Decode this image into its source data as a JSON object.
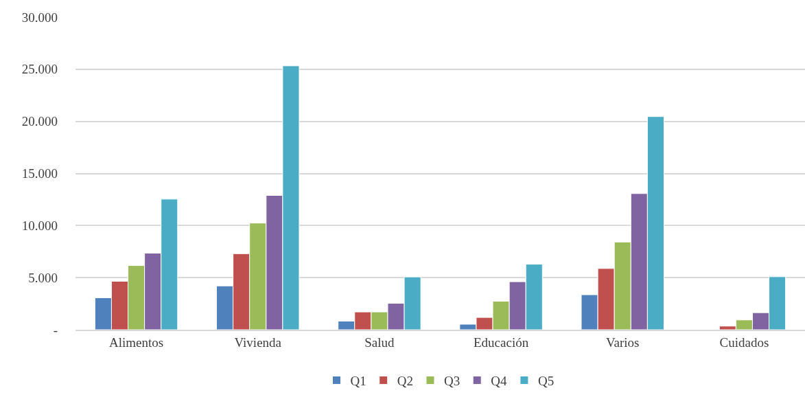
{
  "chart_data": {
    "type": "bar",
    "categories": [
      "Alimentos",
      "Vivienda",
      "Salud",
      "Educación",
      "Varios",
      "Cuidados"
    ],
    "series": [
      {
        "name": "Q1",
        "color": "#4f81bd",
        "values": [
          3070,
          4210,
          830,
          530,
          3360,
          null
        ]
      },
      {
        "name": "Q2",
        "color": "#c0504d",
        "values": [
          4650,
          7300,
          1710,
          1180,
          5880,
          350
        ]
      },
      {
        "name": "Q3",
        "color": "#9bbb59",
        "values": [
          6160,
          10240,
          1710,
          2740,
          8420,
          940
        ]
      },
      {
        "name": "Q4",
        "color": "#8064a2",
        "values": [
          7350,
          12890,
          2540,
          4610,
          13070,
          1640
        ]
      },
      {
        "name": "Q5",
        "color": "#4bacc6",
        "values": [
          12540,
          25330,
          5070,
          6290,
          20460,
          5090
        ]
      }
    ],
    "ylim": [
      0,
      30000
    ],
    "yticks": [
      {
        "value": 0,
        "label": "-"
      },
      {
        "value": 5000,
        "label": "5.000"
      },
      {
        "value": 10000,
        "label": "10.000"
      },
      {
        "value": 15000,
        "label": "15.000"
      },
      {
        "value": 20000,
        "label": "20.000"
      },
      {
        "value": 25000,
        "label": "25.000"
      },
      {
        "value": 30000,
        "label": "30.000"
      }
    ],
    "grid": "y",
    "legend": "bottom"
  }
}
